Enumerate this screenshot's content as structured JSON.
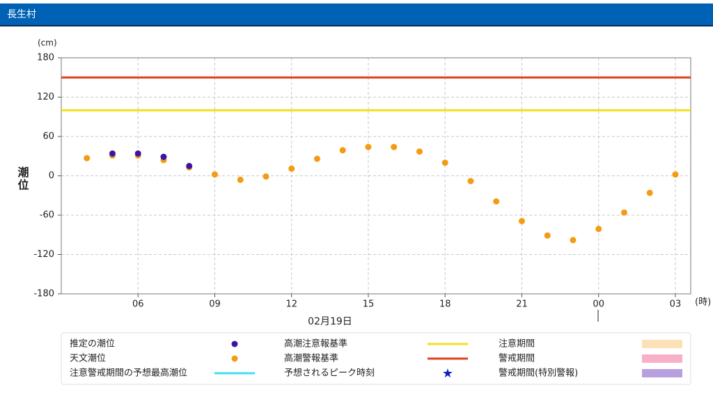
{
  "header": {
    "title": "長生村"
  },
  "chart_data": {
    "type": "scatter",
    "y_label": "潮位",
    "y_unit": "(cm)",
    "x_unit": "(時)",
    "date_label": "02月19日",
    "x": [
      4,
      5,
      6,
      7,
      8,
      9,
      10,
      11,
      12,
      13,
      14,
      15,
      16,
      17,
      18,
      19,
      20,
      21,
      22,
      23,
      24,
      25,
      26,
      27
    ],
    "series": [
      {
        "name": "天文潮位",
        "color": "#f39c12",
        "values": [
          27,
          31,
          31,
          24,
          13,
          2,
          -6,
          -1,
          11,
          26,
          39,
          44,
          44,
          37,
          20,
          -8,
          -39,
          -69,
          -91,
          -98,
          -81,
          -56,
          -26,
          2
        ]
      },
      {
        "name": "推定の潮位",
        "color": "#3a14a8",
        "values": [
          null,
          34,
          34,
          29,
          15,
          null,
          null,
          null,
          null,
          null,
          null,
          null,
          null,
          null,
          null,
          null,
          null,
          null,
          null,
          null,
          null,
          null,
          null,
          null
        ]
      }
    ],
    "reference_lines": [
      {
        "name": "高潮注意報基準",
        "color": "#f0e020",
        "value": 100
      },
      {
        "name": "高潮警報基準",
        "color": "#e0401a",
        "value": 150
      }
    ],
    "legend_extra": [
      {
        "name": "注意警戒期間の予想最高潮位",
        "color": "#40e0f0",
        "symbol": "line"
      },
      {
        "name": "予想されるピーク時刻",
        "color": "#1020c0",
        "symbol": "star"
      },
      {
        "name": "注意期間",
        "color": "#fbe0b8",
        "symbol": "rect"
      },
      {
        "name": "警戒期間",
        "color": "#f8b0c8",
        "symbol": "rect"
      },
      {
        "name": "警戒期間(特別警報)",
        "color": "#b8a0e0",
        "symbol": "rect"
      }
    ],
    "xlim": [
      3,
      27.6
    ],
    "xticks": [
      {
        "value": 6,
        "label": "06"
      },
      {
        "value": 9,
        "label": "09"
      },
      12,
      15,
      18,
      21,
      {
        "value": 24,
        "label": "00"
      },
      {
        "value": 27,
        "label": "03"
      }
    ],
    "ylim": [
      -180,
      180
    ],
    "yticks": [
      -180,
      -120,
      -60,
      0,
      60,
      120,
      180
    ],
    "grid": true
  }
}
